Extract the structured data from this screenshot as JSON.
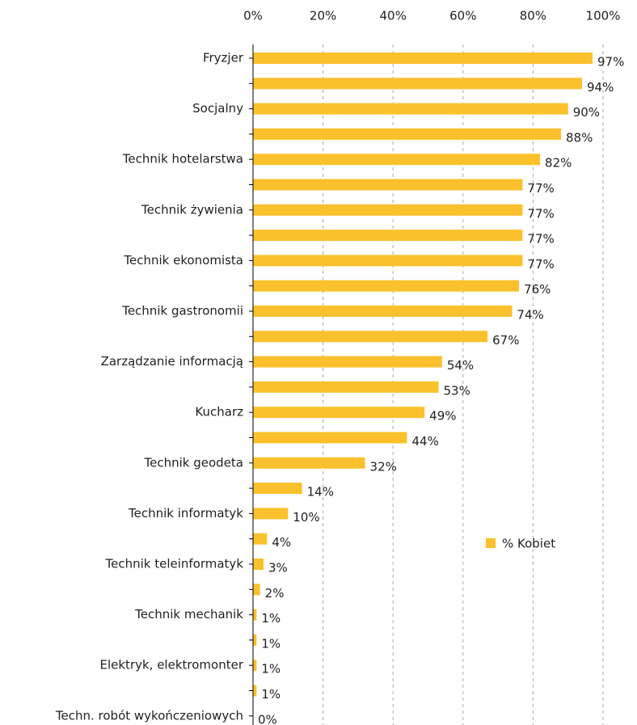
{
  "chart_data": {
    "type": "hbar",
    "categories": [
      "Fryzjer",
      null,
      "Socjalny",
      null,
      "Technik hotelarstwa",
      null,
      "Technik żywienia",
      null,
      "Technik ekonomista",
      null,
      "Technik gastronomii",
      null,
      "Zarządzanie informacją",
      null,
      "Kucharz",
      null,
      "Technik geodeta",
      null,
      "Technik informatyk",
      null,
      "Technik teleinformatyk",
      null,
      "Technik mechanik",
      null,
      "Elektryk, elektromonter",
      null,
      "Techn. robót wykończeniowych"
    ],
    "series": [
      {
        "name": "% Kobiet",
        "color": "#fbc12c",
        "values": [
          97,
          94,
          90,
          88,
          82,
          77,
          77,
          77,
          77,
          76,
          74,
          67,
          54,
          53,
          49,
          44,
          32,
          14,
          10,
          4,
          3,
          2,
          1,
          1,
          1,
          1,
          0
        ],
        "value_labels": [
          "97%",
          "94%",
          "90%",
          "88%",
          "82%",
          "77%",
          "77%",
          "77%",
          "77%",
          "76%",
          "74%",
          "67%",
          "54%",
          "53%",
          "49%",
          "44%",
          "32%",
          "14%",
          "10%",
          "4%",
          "3%",
          "2%",
          "1%",
          "1%",
          "1%",
          "1%",
          "0%"
        ]
      }
    ],
    "xlim": [
      0,
      100
    ],
    "xticks": [
      {
        "value": 0,
        "label": "0%"
      },
      {
        "value": 20,
        "label": "20%"
      },
      {
        "value": 40,
        "label": "40%"
      },
      {
        "value": 60,
        "label": "60%"
      },
      {
        "value": 80,
        "label": "80%"
      },
      {
        "value": 100,
        "label": "100%"
      }
    ],
    "grid": true,
    "legend": "right"
  }
}
